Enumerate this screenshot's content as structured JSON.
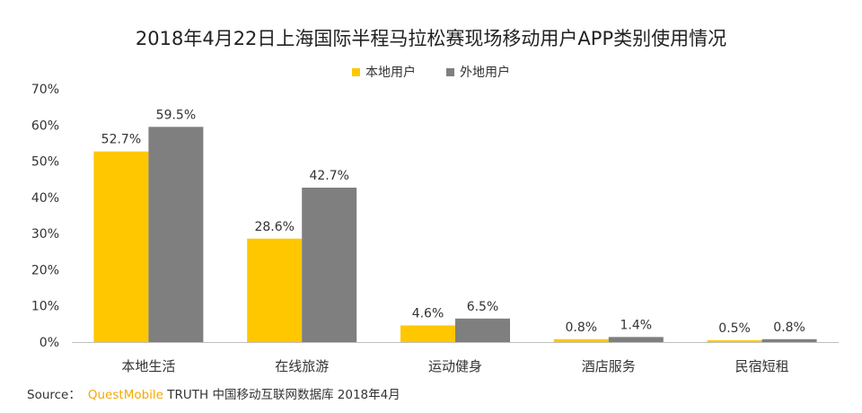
{
  "chart_data": {
    "type": "bar",
    "title": "2018年4月22日上海国际半程马拉松赛现场移动用户APP类别使用情况",
    "categories": [
      "本地生活",
      "在线旅游",
      "运动健身",
      "酒店服务",
      "民宿短租"
    ],
    "series": [
      {
        "name": "本地用户",
        "color": "#ffc700",
        "values": [
          52.7,
          28.6,
          4.6,
          0.8,
          0.5
        ],
        "labels": [
          "52.7%",
          "28.6%",
          "4.6%",
          "0.8%",
          "0.5%"
        ]
      },
      {
        "name": "外地用户",
        "color": "#7f7f7f",
        "values": [
          59.5,
          42.7,
          6.5,
          1.4,
          0.8
        ],
        "labels": [
          "59.5%",
          "42.7%",
          "6.5%",
          "1.4%",
          "0.8%"
        ]
      }
    ],
    "ylim": [
      0,
      70
    ],
    "yticks": [
      0,
      10,
      20,
      30,
      40,
      50,
      60,
      70
    ],
    "ytick_labels": [
      "0%",
      "10%",
      "20%",
      "30%",
      "40%",
      "50%",
      "60%",
      "70%"
    ],
    "xlabel": "",
    "ylabel": "",
    "legend_position": "top-center",
    "grid": false
  },
  "source": {
    "label": "Source：",
    "brand": "QuestMobile",
    "text": "TRUTH 中国移动互联网数据库 2018年4月"
  }
}
